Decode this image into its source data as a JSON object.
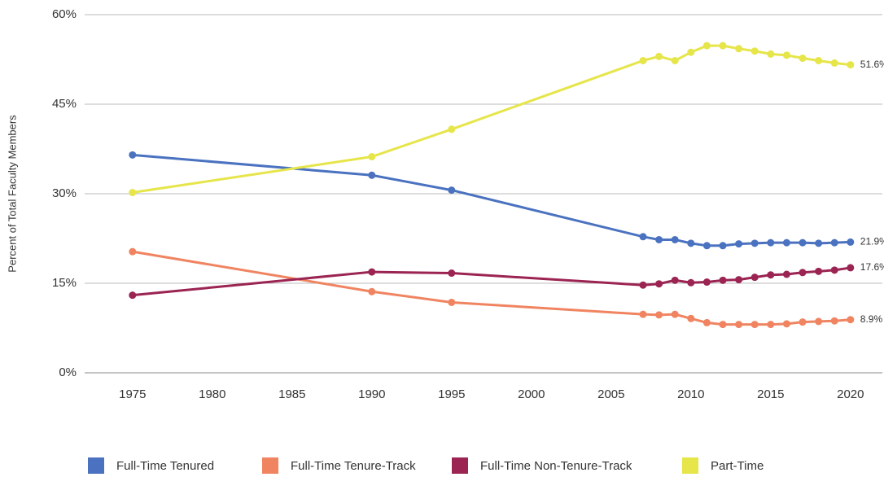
{
  "chart_data": {
    "type": "line",
    "y_label": "Percent of Total Faculty Members",
    "x": [
      1975,
      1990,
      1995,
      2007,
      2008,
      2009,
      2010,
      2011,
      2012,
      2013,
      2014,
      2015,
      2016,
      2017,
      2018,
      2019,
      2020
    ],
    "xlim": [
      1972,
      2022
    ],
    "xticks": [
      1975,
      1980,
      1985,
      1990,
      1995,
      2000,
      2005,
      2010,
      2015,
      2020
    ],
    "ylim": [
      0,
      60
    ],
    "yticks": [
      {
        "value": 0,
        "label": "0%"
      },
      {
        "value": 15,
        "label": "15%"
      },
      {
        "value": 30,
        "label": "30%"
      },
      {
        "value": 45,
        "label": "45%"
      },
      {
        "value": 60,
        "label": "60%"
      }
    ],
    "grid": true,
    "legend": "bottom",
    "series": [
      {
        "name": "Full-Time Tenured",
        "color": "#4a72c0",
        "values": [
          36.5,
          33.1,
          30.6,
          22.8,
          22.3,
          22.3,
          21.7,
          21.3,
          21.3,
          21.6,
          21.7,
          21.8,
          21.8,
          21.8,
          21.7,
          21.8,
          21.9
        ],
        "value_labels": [
          null,
          null,
          null,
          null,
          null,
          null,
          null,
          null,
          null,
          null,
          null,
          null,
          null,
          null,
          null,
          null,
          "21.9%"
        ]
      },
      {
        "name": "Full-Time Tenure-Track",
        "color": "#f08461",
        "values": [
          20.3,
          13.6,
          11.8,
          9.8,
          9.7,
          9.8,
          9.1,
          8.4,
          8.1,
          8.1,
          8.1,
          8.1,
          8.2,
          8.5,
          8.6,
          8.7,
          8.9
        ],
        "value_labels": [
          null,
          null,
          null,
          null,
          null,
          null,
          null,
          null,
          null,
          null,
          null,
          null,
          null,
          null,
          null,
          null,
          "8.9%"
        ]
      },
      {
        "name": "Full-Time Non-Tenure-Track",
        "color": "#9b2452",
        "values": [
          13.0,
          16.9,
          16.7,
          14.7,
          14.9,
          15.5,
          15.1,
          15.2,
          15.5,
          15.6,
          16.0,
          16.4,
          16.5,
          16.8,
          17.0,
          17.2,
          17.6
        ],
        "value_labels": [
          null,
          null,
          null,
          null,
          null,
          null,
          null,
          null,
          null,
          null,
          null,
          null,
          null,
          null,
          null,
          null,
          "17.6%"
        ]
      },
      {
        "name": "Part-Time",
        "color": "#e6e54a",
        "values": [
          30.2,
          36.2,
          40.8,
          52.3,
          53.0,
          52.3,
          53.7,
          54.8,
          54.8,
          54.3,
          53.9,
          53.4,
          53.2,
          52.7,
          52.3,
          51.9,
          51.6
        ],
        "value_labels": [
          null,
          null,
          null,
          null,
          null,
          null,
          null,
          null,
          null,
          null,
          null,
          null,
          null,
          null,
          null,
          null,
          "51.6%"
        ]
      }
    ]
  }
}
